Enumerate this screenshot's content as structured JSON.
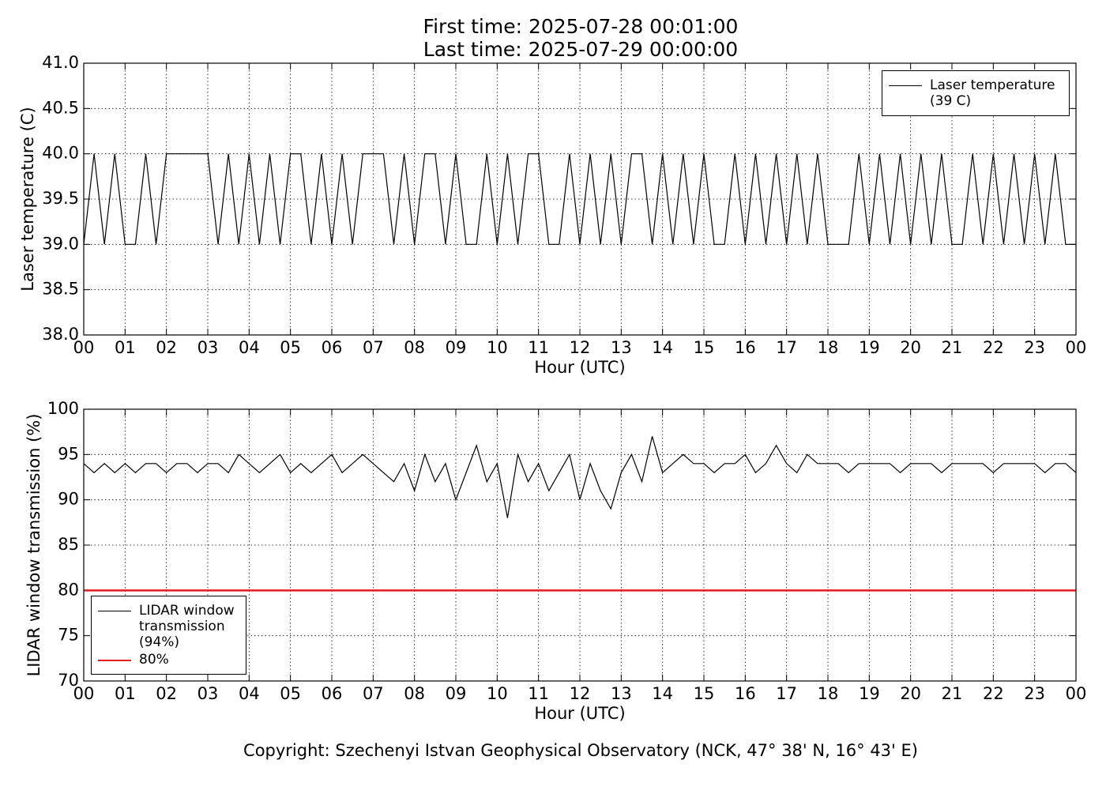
{
  "chart_data": [
    {
      "type": "line",
      "title": [
        "First time: 2025-07-28 00:01:00",
        "Last time: 2025-07-29 00:00:00"
      ],
      "xlabel": "Hour (UTC)",
      "ylabel": "Laser temperature (C)",
      "x": [
        0,
        0.25,
        0.5,
        0.75,
        1,
        1.25,
        1.5,
        1.75,
        2,
        2.25,
        2.5,
        2.75,
        3,
        3.25,
        3.5,
        3.75,
        4,
        4.25,
        4.5,
        4.75,
        5,
        5.25,
        5.5,
        5.75,
        6,
        6.25,
        6.5,
        6.75,
        7,
        7.25,
        7.5,
        7.75,
        8,
        8.25,
        8.5,
        8.75,
        9,
        9.25,
        9.5,
        9.75,
        10,
        10.25,
        10.5,
        10.75,
        11,
        11.25,
        11.5,
        11.75,
        12,
        12.25,
        12.5,
        12.75,
        13,
        13.25,
        13.5,
        13.75,
        14,
        14.25,
        14.5,
        14.75,
        15,
        15.25,
        15.5,
        15.75,
        16,
        16.25,
        16.5,
        16.75,
        17,
        17.25,
        17.5,
        17.75,
        18,
        18.25,
        18.5,
        18.75,
        19,
        19.25,
        19.5,
        19.75,
        20,
        20.25,
        20.5,
        20.75,
        21,
        21.25,
        21.5,
        21.75,
        22,
        22.25,
        22.5,
        22.75,
        23,
        23.25,
        23.5,
        23.75,
        24
      ],
      "series": [
        {
          "name": "Laser temperature (39 C)",
          "color": "#000000",
          "values": [
            39,
            40,
            39,
            40,
            39,
            39,
            40,
            39,
            40,
            40,
            40,
            40,
            40,
            39,
            40,
            39,
            40,
            39,
            40,
            39,
            40,
            40,
            39,
            40,
            39,
            40,
            39,
            40,
            40,
            40,
            39,
            40,
            39,
            40,
            40,
            39,
            40,
            39,
            39,
            40,
            39,
            40,
            39,
            40,
            40,
            39,
            39,
            40,
            39,
            40,
            39,
            40,
            39,
            40,
            40,
            39,
            40,
            39,
            40,
            39,
            40,
            39,
            39,
            40,
            39,
            40,
            39,
            40,
            39,
            40,
            39,
            40,
            39,
            39,
            39,
            40,
            39,
            40,
            39,
            40,
            39,
            40,
            39,
            40,
            39,
            39,
            40,
            39,
            40,
            39,
            40,
            39,
            40,
            39,
            40,
            39,
            39
          ]
        }
      ],
      "xlim": [
        0,
        24
      ],
      "xticks": [
        {
          "value": 0,
          "label": "00"
        },
        {
          "value": 1,
          "label": "01"
        },
        {
          "value": 2,
          "label": "02"
        },
        {
          "value": 3,
          "label": "03"
        },
        {
          "value": 4,
          "label": "04"
        },
        {
          "value": 5,
          "label": "05"
        },
        {
          "value": 6,
          "label": "06"
        },
        {
          "value": 7,
          "label": "07"
        },
        {
          "value": 8,
          "label": "08"
        },
        {
          "value": 9,
          "label": "09"
        },
        10,
        11,
        12,
        13,
        14,
        15,
        16,
        17,
        18,
        19,
        20,
        21,
        22,
        23,
        {
          "value": 24,
          "label": "00"
        }
      ],
      "ylim": [
        38,
        41
      ],
      "yticks": [
        {
          "value": 38,
          "label": "38.0"
        },
        38.5,
        {
          "value": 39,
          "label": "39.0"
        },
        39.5,
        {
          "value": 40,
          "label": "40.0"
        },
        40.5,
        {
          "value": 41,
          "label": "41.0"
        }
      ],
      "grid": true,
      "legend": "upper right"
    },
    {
      "type": "line",
      "xlabel": "Hour (UTC)",
      "ylabel": "LIDAR window transmission (%)",
      "x": [
        0,
        0.25,
        0.5,
        0.75,
        1,
        1.25,
        1.5,
        1.75,
        2,
        2.25,
        2.5,
        2.75,
        3,
        3.25,
        3.5,
        3.75,
        4,
        4.25,
        4.5,
        4.75,
        5,
        5.25,
        5.5,
        5.75,
        6,
        6.25,
        6.5,
        6.75,
        7,
        7.25,
        7.5,
        7.75,
        8,
        8.25,
        8.5,
        8.75,
        9,
        9.25,
        9.5,
        9.75,
        10,
        10.25,
        10.5,
        10.75,
        11,
        11.25,
        11.5,
        11.75,
        12,
        12.25,
        12.5,
        12.75,
        13,
        13.25,
        13.5,
        13.75,
        14,
        14.25,
        14.5,
        14.75,
        15,
        15.25,
        15.5,
        15.75,
        16,
        16.25,
        16.5,
        16.75,
        17,
        17.25,
        17.5,
        17.75,
        18,
        18.25,
        18.5,
        18.75,
        19,
        19.25,
        19.5,
        19.75,
        20,
        20.25,
        20.5,
        20.75,
        21,
        21.25,
        21.5,
        21.75,
        22,
        22.25,
        22.5,
        22.75,
        23,
        23.25,
        23.5,
        23.75,
        24
      ],
      "series": [
        {
          "name": "LIDAR window transmission (94%)",
          "color": "#000000",
          "values": [
            94,
            93,
            94,
            93,
            94,
            93,
            94,
            94,
            93,
            94,
            94,
            93,
            94,
            94,
            93,
            95,
            94,
            93,
            94,
            95,
            93,
            94,
            93,
            94,
            95,
            93,
            94,
            95,
            94,
            93,
            92,
            94,
            91,
            95,
            92,
            94,
            90,
            93,
            96,
            92,
            94,
            88,
            95,
            92,
            94,
            91,
            93,
            95,
            90,
            94,
            91,
            89,
            93,
            95,
            92,
            97,
            93,
            94,
            95,
            94,
            94,
            93,
            94,
            94,
            95,
            93,
            94,
            96,
            94,
            93,
            95,
            94,
            94,
            94,
            93,
            94,
            94,
            94,
            94,
            93,
            94,
            94,
            94,
            93,
            94,
            94,
            94,
            94,
            93,
            94,
            94,
            94,
            94,
            93,
            94,
            94,
            93
          ]
        },
        {
          "name": "80%",
          "color": "#e41a1c",
          "x": [
            0,
            24
          ],
          "values": [
            80,
            80
          ]
        }
      ],
      "xlim": [
        0,
        24
      ],
      "xticks": [
        {
          "value": 0,
          "label": "00"
        },
        {
          "value": 1,
          "label": "01"
        },
        {
          "value": 2,
          "label": "02"
        },
        {
          "value": 3,
          "label": "03"
        },
        {
          "value": 4,
          "label": "04"
        },
        {
          "value": 5,
          "label": "05"
        },
        {
          "value": 6,
          "label": "06"
        },
        {
          "value": 7,
          "label": "07"
        },
        {
          "value": 8,
          "label": "08"
        },
        {
          "value": 9,
          "label": "09"
        },
        10,
        11,
        12,
        13,
        14,
        15,
        16,
        17,
        18,
        19,
        20,
        21,
        22,
        23,
        {
          "value": 24,
          "label": "00"
        }
      ],
      "ylim": [
        70,
        100
      ],
      "yticks": [
        70,
        75,
        80,
        85,
        90,
        95,
        100
      ],
      "grid": true,
      "legend": "lower left"
    }
  ],
  "copyright": "Copyright: Szechenyi Istvan Geophysical Observatory (NCK, 47° 38' N, 16° 43' E)"
}
